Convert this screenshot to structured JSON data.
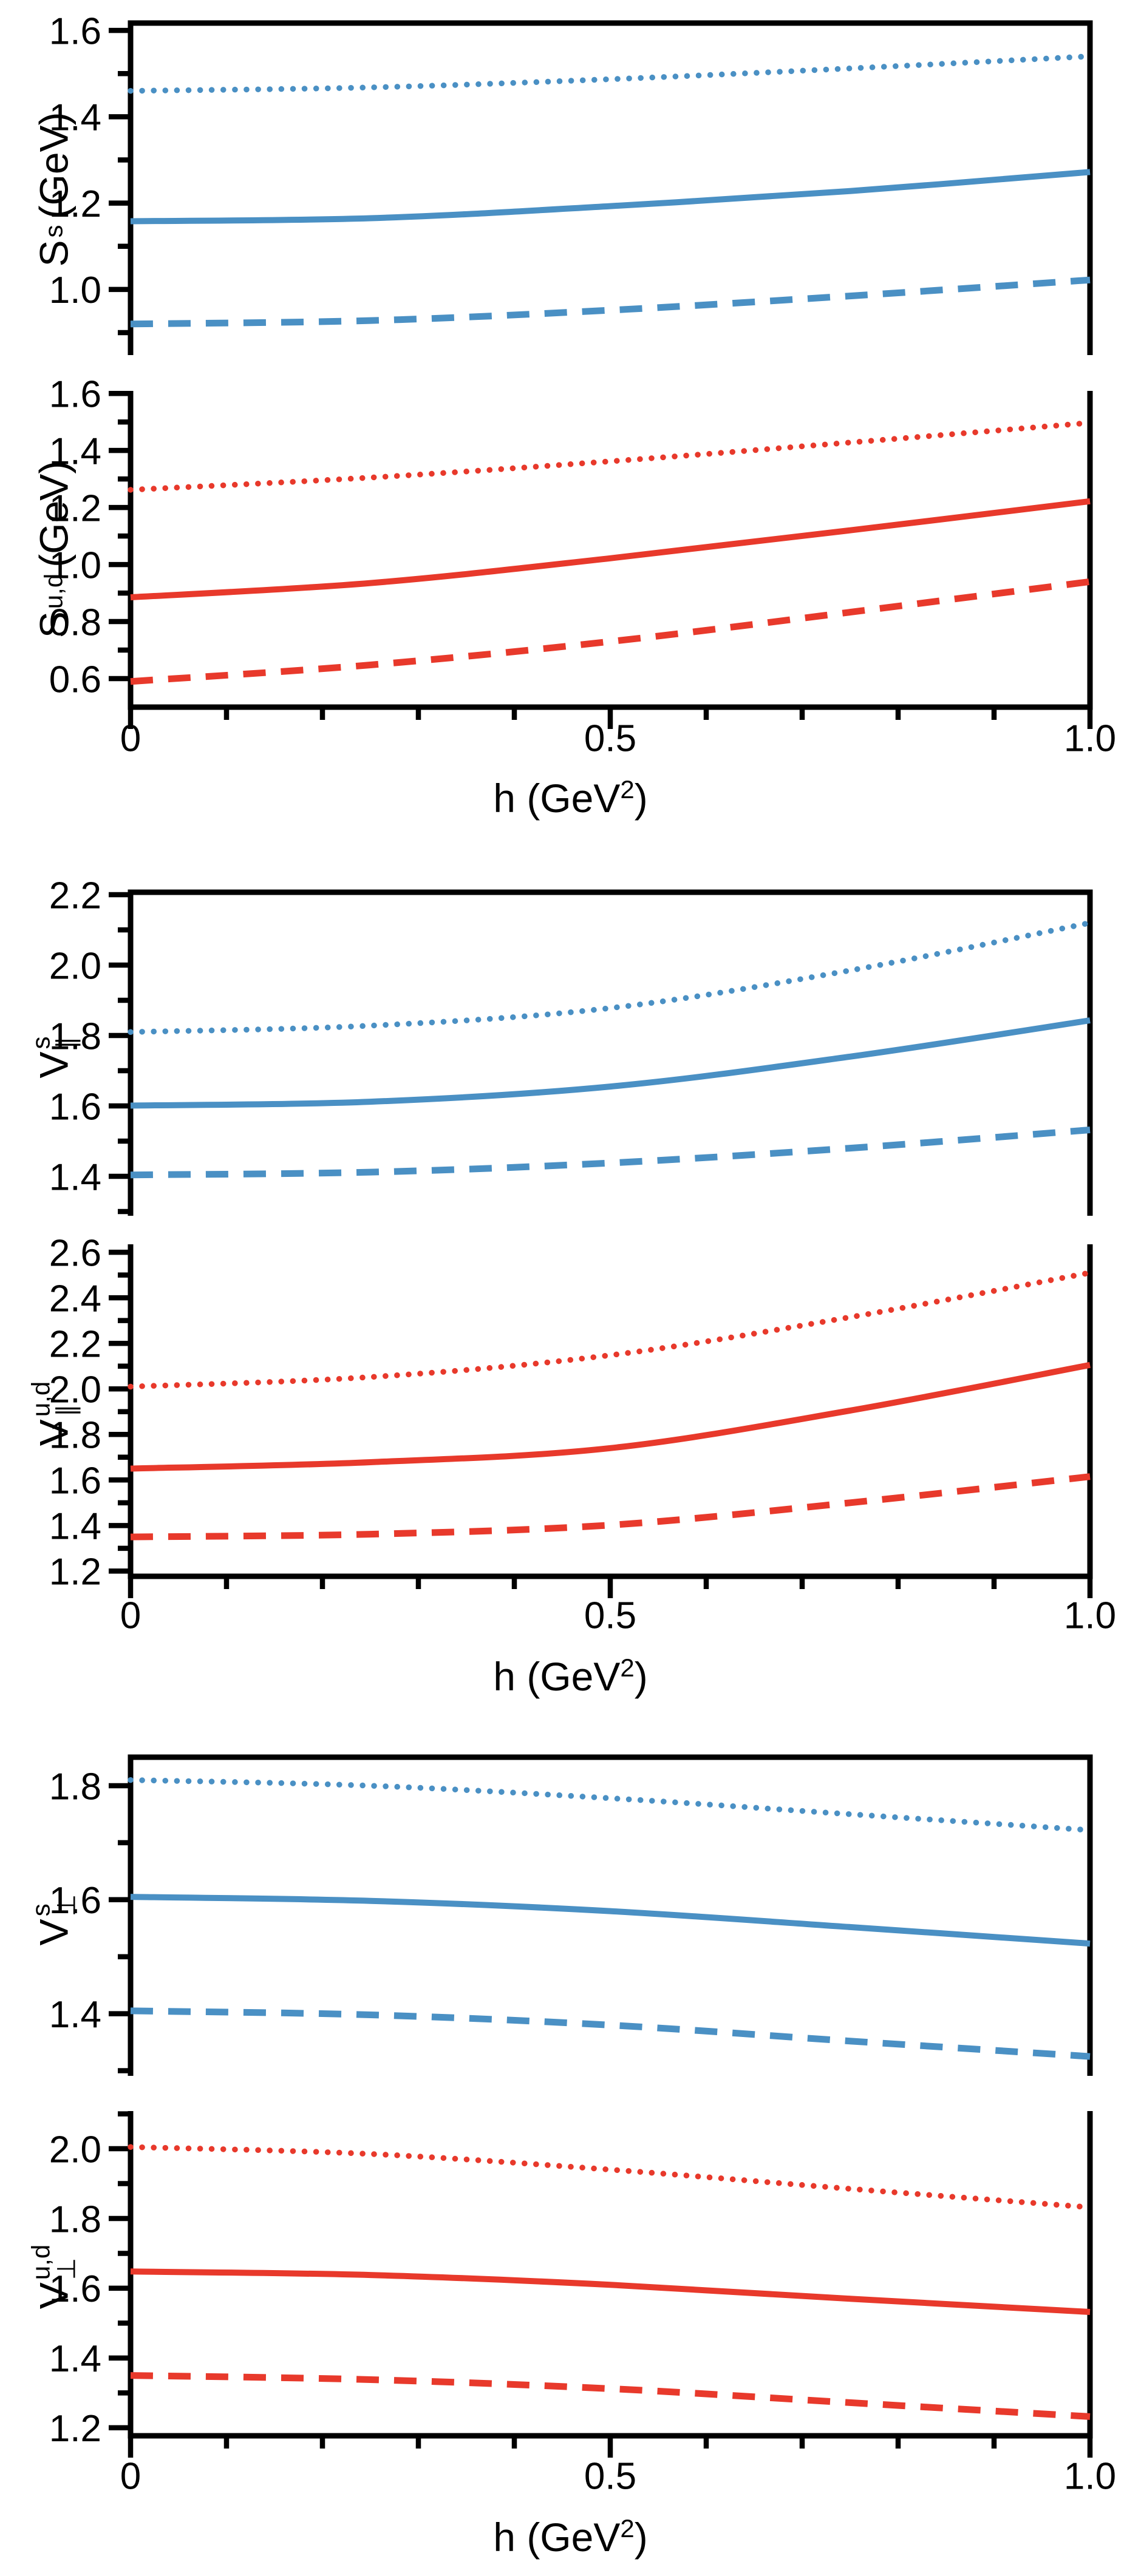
{
  "figure": {
    "background": "#ffffff",
    "axis_color": "#000000"
  },
  "colors": {
    "blue": "#4a90c4",
    "red": "#e8392b"
  },
  "xlabel": {
    "pre": "h (GeV",
    "sup": "2",
    "post": ")"
  },
  "x_axis": {
    "range": [
      0,
      1.0
    ],
    "ticks_major": [
      0,
      0.5,
      1.0
    ],
    "tick_labels": [
      "0",
      "0.5",
      "1.0"
    ],
    "minor_step": 0.1
  },
  "chart_data": {
    "type": "line",
    "x": [
      0,
      0.25,
      0.5,
      0.75,
      1.0
    ],
    "series_styles": [
      "dotted",
      "solid",
      "dashed"
    ],
    "panels": [
      {
        "id": "S-s",
        "label": {
          "base": "S",
          "sup": "s",
          "sub": "",
          "suffix": " (GeV)"
        },
        "color": "blue",
        "y_range": [
          0.848,
          1.617
        ],
        "y_ticks_major": [
          1.6,
          1.4,
          1.2,
          1.0
        ],
        "y_tick_labels": [
          "1.6",
          "1.4",
          "1.2",
          "1.0"
        ],
        "y_ticks_minor": [
          1.5,
          1.3,
          1.1,
          0.9
        ],
        "series": {
          "dotted": [
            1.46,
            1.468,
            1.487,
            1.512,
            1.54
          ],
          "solid": [
            1.158,
            1.165,
            1.193,
            1.228,
            1.272
          ],
          "dashed": [
            0.92,
            0.928,
            0.952,
            0.985,
            1.022
          ]
        }
      },
      {
        "id": "S-ud",
        "label": {
          "base": "S",
          "sup": "u,d",
          "sub": "",
          "suffix": " (GeV)"
        },
        "color": "red",
        "y_range": [
          0.5,
          1.609
        ],
        "y_ticks_major": [
          1.6,
          1.4,
          1.2,
          1.0,
          0.8,
          0.6
        ],
        "y_tick_labels": [
          "1.6",
          "1.4",
          "1.2",
          "1.0",
          "0.8",
          "0.6"
        ],
        "y_ticks_minor": [
          1.5,
          1.3,
          1.1,
          0.9,
          0.7
        ],
        "series": {
          "dotted": [
            1.262,
            1.305,
            1.362,
            1.428,
            1.497
          ],
          "solid": [
            0.885,
            0.935,
            1.022,
            1.12,
            1.222
          ],
          "dashed": [
            0.59,
            0.648,
            0.73,
            0.833,
            0.94
          ]
        }
      },
      {
        "id": "V-par-s",
        "label": {
          "base": "V",
          "sup": "s",
          "sub": "∥",
          "suffix": ""
        },
        "color": "blue",
        "y_range": [
          1.288,
          2.207
        ],
        "y_ticks_major": [
          2.2,
          2.0,
          1.8,
          1.6,
          1.4
        ],
        "y_tick_labels": [
          "2.2",
          "2.0",
          "1.8",
          "1.6",
          "1.4"
        ],
        "y_ticks_minor": [
          2.1,
          1.9,
          1.7,
          1.5,
          1.3
        ],
        "series": {
          "dotted": [
            1.81,
            1.828,
            1.878,
            1.985,
            2.12
          ],
          "solid": [
            1.601,
            1.612,
            1.655,
            1.74,
            1.843
          ],
          "dashed": [
            1.404,
            1.412,
            1.438,
            1.48,
            1.532
          ]
        }
      },
      {
        "id": "V-par-ud",
        "label": {
          "base": "V",
          "sup": "u,d",
          "sub": "∥",
          "suffix": ""
        },
        "color": "red",
        "y_range": [
          1.177,
          2.635
        ],
        "y_ticks_major": [
          2.6,
          2.4,
          2.2,
          2.0,
          1.8,
          1.6,
          1.4,
          1.2
        ],
        "y_tick_labels": [
          "2.6",
          "2.4",
          "2.2",
          "2.0",
          "1.8",
          "1.6",
          "1.4",
          "1.2"
        ],
        "y_ticks_minor": [
          2.5,
          2.3,
          2.1,
          1.9,
          1.7,
          1.5,
          1.3
        ],
        "series": {
          "dotted": [
            2.01,
            2.052,
            2.148,
            2.315,
            2.51
          ],
          "solid": [
            1.65,
            1.678,
            1.74,
            1.905,
            2.105
          ],
          "dashed": [
            1.35,
            1.362,
            1.402,
            1.5,
            1.615
          ]
        }
      },
      {
        "id": "V-perp-s",
        "label": {
          "base": "V",
          "sup": "s",
          "sub": "⊥",
          "suffix": ""
        },
        "color": "blue",
        "y_range": [
          1.291,
          1.85
        ],
        "y_ticks_major": [
          1.8,
          1.6,
          1.4
        ],
        "y_tick_labels": [
          "1.8",
          "1.6",
          "1.4"
        ],
        "y_ticks_minor": [
          1.7,
          1.5,
          1.3
        ],
        "series": {
          "dotted": [
            1.81,
            1.8,
            1.778,
            1.75,
            1.722
          ],
          "solid": [
            1.605,
            1.598,
            1.58,
            1.552,
            1.523
          ],
          "dashed": [
            1.405,
            1.398,
            1.38,
            1.352,
            1.325
          ]
        }
      },
      {
        "id": "V-perp-ud",
        "label": {
          "base": "V",
          "sup": "u,d",
          "sub": "⊥",
          "suffix": ""
        },
        "color": "red",
        "y_range": [
          1.177,
          2.108
        ],
        "y_ticks_major": [
          2.0,
          1.8,
          1.6,
          1.4,
          1.2
        ],
        "y_tick_labels": [
          "2.0",
          "1.8",
          "1.6",
          "1.4",
          "1.2"
        ],
        "y_ticks_minor": [
          2.1,
          1.9,
          1.7,
          1.5,
          1.3
        ],
        "series": {
          "dotted": [
            2.005,
            1.985,
            1.94,
            1.885,
            1.832
          ],
          "solid": [
            1.648,
            1.638,
            1.61,
            1.57,
            1.532
          ],
          "dashed": [
            1.35,
            1.338,
            1.312,
            1.272,
            1.232
          ]
        }
      }
    ]
  }
}
